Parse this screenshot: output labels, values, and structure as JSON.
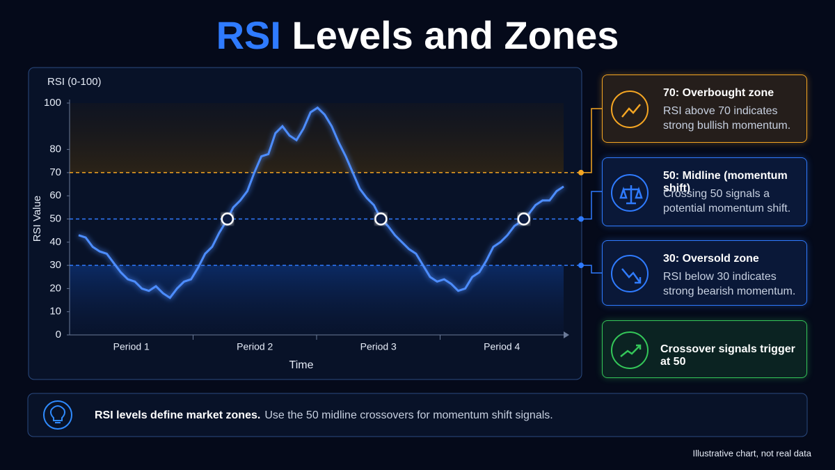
{
  "title": {
    "highlight": "RSI",
    "rest": "Levels and Zones"
  },
  "chart_data": {
    "type": "line",
    "unit_label": "RSI (0-100)",
    "y_label": "RSI Value",
    "x_label": "Time",
    "period_labels": [
      "Period 1",
      "Period 2",
      "Period 3",
      "Period 4"
    ],
    "series": [
      {
        "name": "RSI",
        "color": "#4d8dff",
        "values": [
          43,
          42,
          38,
          36,
          35,
          31,
          27,
          24,
          23,
          20,
          19,
          21,
          18,
          16,
          20,
          23,
          24,
          29,
          35,
          38,
          44,
          49,
          55,
          58,
          62,
          70,
          77,
          78,
          87,
          90,
          86,
          84,
          89,
          96,
          98,
          95,
          90,
          83,
          77,
          70,
          63,
          59,
          56,
          50,
          47,
          43,
          40,
          37,
          35,
          30,
          25,
          23,
          24,
          22,
          19,
          20,
          25,
          27,
          32,
          38,
          40,
          43,
          47,
          49,
          52,
          56,
          58,
          58,
          62,
          64
        ]
      }
    ],
    "ylim": [
      0,
      100
    ],
    "yticks": [
      0,
      10,
      20,
      30,
      40,
      50,
      60,
      70,
      80,
      100
    ],
    "reference_lines": [
      {
        "value": 70,
        "color": "#f5a623"
      },
      {
        "value": 50,
        "color": "#2f7bff"
      },
      {
        "value": 30,
        "color": "#2f7bff"
      }
    ],
    "crossover_level": 50
  },
  "cards": [
    {
      "title": "70: Overbought zone",
      "text": "RSI above 70 indicates strong bullish momentum.",
      "color": "#f5a623"
    },
    {
      "title": "50: Midline (momentum shift)",
      "text": "Crossing 50 signals a potential momentum shift.",
      "color": "#2f7bff"
    },
    {
      "title": "30: Oversold zone",
      "text": "RSI below 30 indicates strong bearish momentum.",
      "color": "#2f7bff"
    },
    {
      "title": "Crossover signals trigger at 50",
      "color": "#34c759"
    }
  ],
  "footer": {
    "bold": "RSI levels define market zones.",
    "text": "Use the 50 midline crossovers for momentum shift signals."
  },
  "note": "Illustrative chart, not real data"
}
